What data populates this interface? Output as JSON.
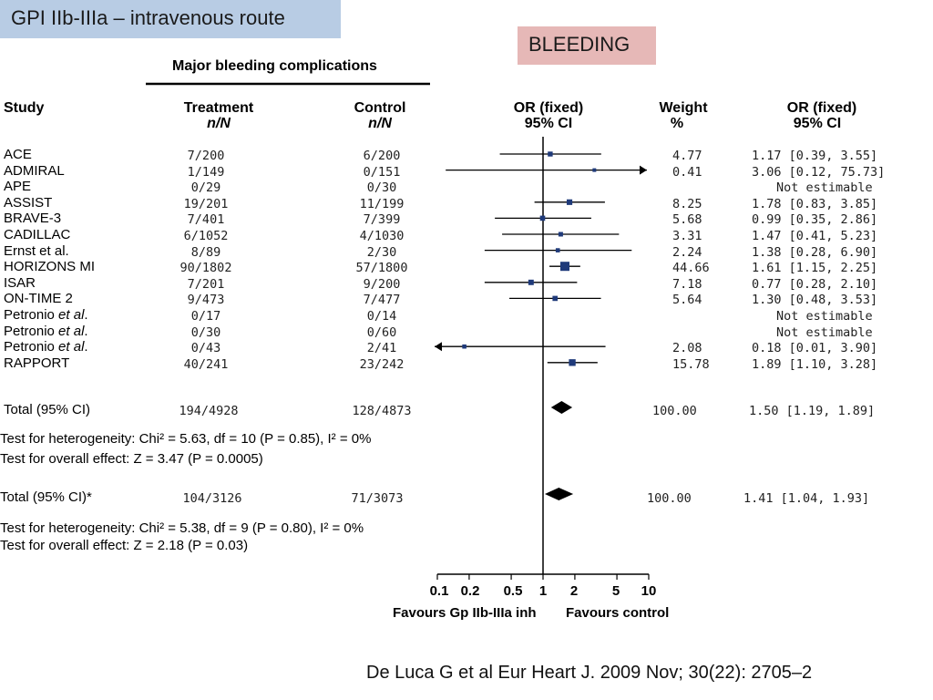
{
  "slide": {
    "title": "GPI IIb-IIIa – intravenous route",
    "tag": "BLEEDING",
    "citation": "De Luca G et al Eur Heart J. 2009 Nov; 30(22): 2705–2",
    "title_bg": "#b8cce4",
    "tag_bg": "#e6b8b7"
  },
  "forest": {
    "section_title": "Major bleeding complications",
    "headers": {
      "study": "Study",
      "treatment": "Treatment",
      "treatment_sub": "n/N",
      "control": "Control",
      "control_sub": "n/N",
      "or": "OR (fixed)",
      "or_sub": "95% CI",
      "weight": "Weight",
      "weight_sub": "%",
      "or2": "OR (fixed)",
      "or2_sub": "95% CI"
    },
    "studies": [
      {
        "name": "ACE",
        "treatment": "7/200",
        "control": "6/200",
        "weight": "4.77",
        "ci_text": "1.17 [0.39, 3.55]"
      },
      {
        "name": "ADMIRAL",
        "treatment": "1/149",
        "control": "0/151",
        "weight": "0.41",
        "ci_text": "3.06 [0.12, 75.73]"
      },
      {
        "name": "APE",
        "treatment": "0/29",
        "control": "0/30",
        "weight": "",
        "ci_text": "Not estimable"
      },
      {
        "name": "ASSIST",
        "treatment": "19/201",
        "control": "11/199",
        "weight": "8.25",
        "ci_text": "1.78 [0.83, 3.85]"
      },
      {
        "name": "BRAVE-3",
        "treatment": "7/401",
        "control": "7/399",
        "weight": "5.68",
        "ci_text": "0.99 [0.35, 2.86]"
      },
      {
        "name": "CADILLAC",
        "treatment": "6/1052",
        "control": "4/1030",
        "weight": "3.31",
        "ci_text": "1.47 [0.41, 5.23]"
      },
      {
        "name": "Ernst et al.",
        "treatment": "8/89",
        "control": "2/30",
        "weight": "2.24",
        "ci_text": "1.38 [0.28, 6.90]"
      },
      {
        "name": "HORIZONS MI",
        "treatment": "90/1802",
        "control": "57/1800",
        "weight": "44.66",
        "ci_text": "1.61 [1.15, 2.25]"
      },
      {
        "name": "ISAR",
        "treatment": "7/201",
        "control": "9/200",
        "weight": "7.18",
        "ci_text": "0.77 [0.28, 2.10]"
      },
      {
        "name": "ON-TIME 2",
        "treatment": "9/473",
        "control": "7/477",
        "weight": "5.64",
        "ci_text": "1.30 [0.48, 3.53]"
      },
      {
        "name": "Petronio et al.",
        "treatment": "0/17",
        "control": "0/14",
        "weight": "",
        "ci_text": "Not estimable"
      },
      {
        "name": "Petronio et al.",
        "treatment": "0/30",
        "control": "0/60",
        "weight": "",
        "ci_text": "Not estimable"
      },
      {
        "name": "Petronio et al.",
        "treatment": "0/43",
        "control": "2/41",
        "weight": "2.08",
        "ci_text": "0.18 [0.01, 3.90]"
      },
      {
        "name": "RAPPORT",
        "treatment": "40/241",
        "control": "23/242",
        "weight": "15.78",
        "ci_text": "1.89 [1.10, 3.28]"
      }
    ],
    "total1": {
      "label": "Total (95% CI)",
      "treatment": "194/4928",
      "control": "128/4873",
      "weight": "100.00",
      "ci_text": "1.50 [1.19, 1.89]"
    },
    "het1": "Test for heterogeneity: Chi² = 5.63, df = 10 (P = 0.85), I² = 0%",
    "overall1": "Test for overall effect: Z = 3.47 (P = 0.0005)",
    "total2": {
      "label": "Total (95% CI)*",
      "treatment": "104/3126",
      "control": "71/3073",
      "weight": "100.00",
      "ci_text": "1.41 [1.04, 1.93]"
    },
    "het2": "Test for heterogeneity: Chi² = 5.38, df = 9 (P = 0.80), I² = 0%",
    "overall2": "Test for overall effect: Z = 2.18 (P = 0.03)",
    "axis_ticks": [
      "0.1",
      "0.2",
      "0.5",
      "1",
      "2",
      "5",
      "10"
    ],
    "favours_left": "Favours Gp IIb-IIIa inh",
    "favours_right": "Favours control"
  },
  "chart_data": {
    "type": "forest",
    "scale": "log",
    "xlim": [
      0.1,
      10
    ],
    "x_ticks": [
      0.1,
      0.2,
      0.5,
      1,
      2,
      5,
      10
    ],
    "reference_line": 1,
    "marker_color": "#1f3a7a",
    "points": [
      {
        "study": "ACE",
        "or": 1.17,
        "lo": 0.39,
        "hi": 3.55,
        "weight": 4.77
      },
      {
        "study": "ADMIRAL",
        "or": 3.06,
        "lo": 0.12,
        "hi": 75.73,
        "weight": 0.41
      },
      {
        "study": "APE",
        "or": null,
        "lo": null,
        "hi": null,
        "weight": null
      },
      {
        "study": "ASSIST",
        "or": 1.78,
        "lo": 0.83,
        "hi": 3.85,
        "weight": 8.25
      },
      {
        "study": "BRAVE-3",
        "or": 0.99,
        "lo": 0.35,
        "hi": 2.86,
        "weight": 5.68
      },
      {
        "study": "CADILLAC",
        "or": 1.47,
        "lo": 0.41,
        "hi": 5.23,
        "weight": 3.31
      },
      {
        "study": "Ernst et al.",
        "or": 1.38,
        "lo": 0.28,
        "hi": 6.9,
        "weight": 2.24
      },
      {
        "study": "HORIZONS MI",
        "or": 1.61,
        "lo": 1.15,
        "hi": 2.25,
        "weight": 44.66
      },
      {
        "study": "ISAR",
        "or": 0.77,
        "lo": 0.28,
        "hi": 2.1,
        "weight": 7.18
      },
      {
        "study": "ON-TIME 2",
        "or": 1.3,
        "lo": 0.48,
        "hi": 3.53,
        "weight": 5.64
      },
      {
        "study": "Petronio et al.",
        "or": null,
        "lo": null,
        "hi": null,
        "weight": null
      },
      {
        "study": "Petronio et al.",
        "or": null,
        "lo": null,
        "hi": null,
        "weight": null
      },
      {
        "study": "Petronio et al.",
        "or": 0.18,
        "lo": 0.01,
        "hi": 3.9,
        "weight": 2.08
      },
      {
        "study": "RAPPORT",
        "or": 1.89,
        "lo": 1.1,
        "hi": 3.28,
        "weight": 15.78
      }
    ],
    "totals": [
      {
        "label": "Total (95% CI)",
        "or": 1.5,
        "lo": 1.19,
        "hi": 1.89
      },
      {
        "label": "Total (95% CI)*",
        "or": 1.41,
        "lo": 1.04,
        "hi": 1.93
      }
    ]
  }
}
